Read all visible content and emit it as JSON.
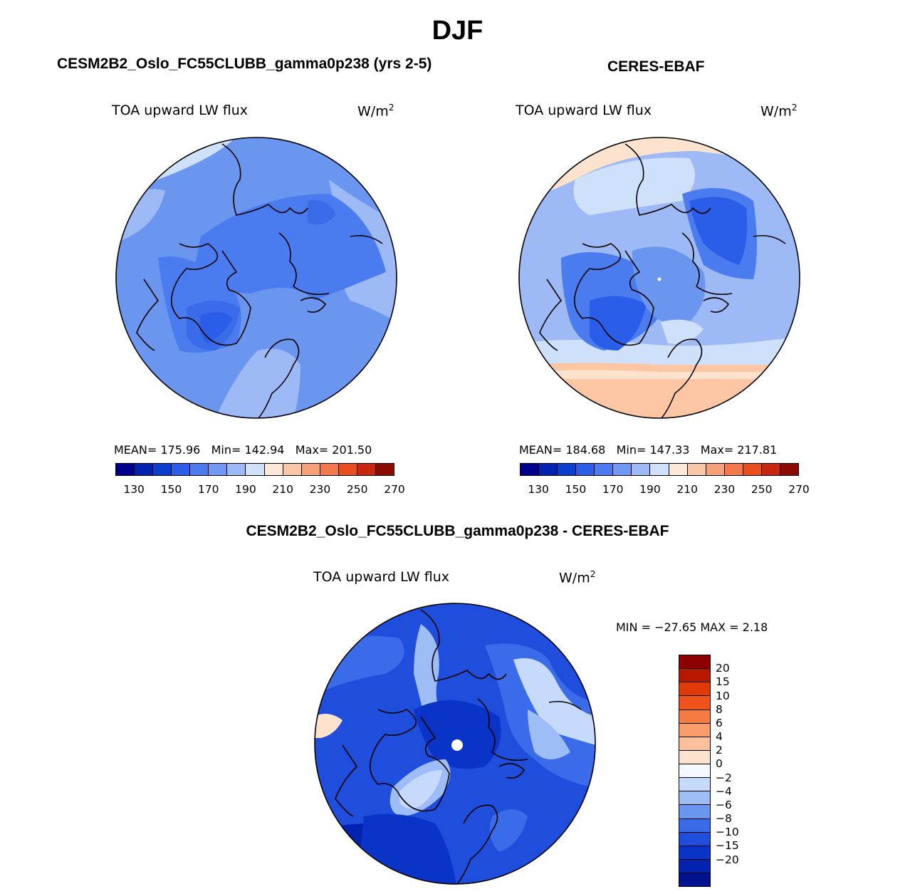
{
  "title": "DJF",
  "variable": "TOA upward LW flux",
  "units_base": "W/m",
  "units_exp": "2",
  "panels": {
    "model": {
      "title": "CESM2B2_Oslo_FC55CLUBB_gamma0p238 (yrs 2-5)",
      "stats": {
        "mean_label": "MEAN=",
        "mean": "175.96",
        "min_label": "Min=",
        "min": "142.94",
        "max_label": "Max=",
        "max": "201.50"
      }
    },
    "obs": {
      "title": "CERES-EBAF",
      "stats": {
        "mean_label": "MEAN=",
        "mean": "184.68",
        "min_label": "Min=",
        "min": "147.33",
        "max_label": "Max=",
        "max": "217.81"
      }
    },
    "diff": {
      "title": "CESM2B2_Oslo_FC55CLUBB_gamma0p238 - CERES-EBAF",
      "minmax": "MIN = −27.65 MAX =    2.18"
    }
  },
  "abs_colorbar": {
    "colors": [
      "#00008f",
      "#0022b0",
      "#0a3ed0",
      "#2a5ee8",
      "#4a7cf0",
      "#6f99f2",
      "#9dbaf6",
      "#cfe0fa",
      "#fde7d7",
      "#f9c6a8",
      "#f7a178",
      "#f4784a",
      "#ea4e1e",
      "#c8270e",
      "#8c0a00"
    ],
    "labels": [
      "130",
      "150",
      "170",
      "190",
      "210",
      "230",
      "250",
      "270"
    ]
  },
  "diff_colorbar": {
    "colors": [
      "#8c0000",
      "#b81800",
      "#e03a0a",
      "#f0521c",
      "#f77a40",
      "#fa9d6c",
      "#fcbf9c",
      "#fde2ce",
      "#f4f8ff",
      "#c6dafc",
      "#9ebdf6",
      "#6a96ef",
      "#3a6be8",
      "#1f4ddc",
      "#0a33c8",
      "#0222b0",
      "#00128e"
    ],
    "labels": [
      "20",
      "15",
      "10",
      "8",
      "6",
      "4",
      "2",
      "0",
      "−2",
      "−4",
      "−6",
      "−8",
      "−10",
      "−15",
      "−20"
    ]
  },
  "map_colors": {
    "model": [
      "#6a96ef",
      "#4a7cf0",
      "#3a6be8",
      "#2a5ee8",
      "#9dbaf6",
      "#cfe0fa"
    ],
    "obs": [
      "#9dbaf6",
      "#6a96ef",
      "#4a7cf0",
      "#2a5ee8",
      "#cfe0fa",
      "#fde2ce",
      "#fcc6a4"
    ],
    "diff": [
      "#1f4ddc",
      "#0a33c8",
      "#0222b0",
      "#3a6be8",
      "#9ebdf6",
      "#c6dafc",
      "#fde2ce"
    ]
  }
}
